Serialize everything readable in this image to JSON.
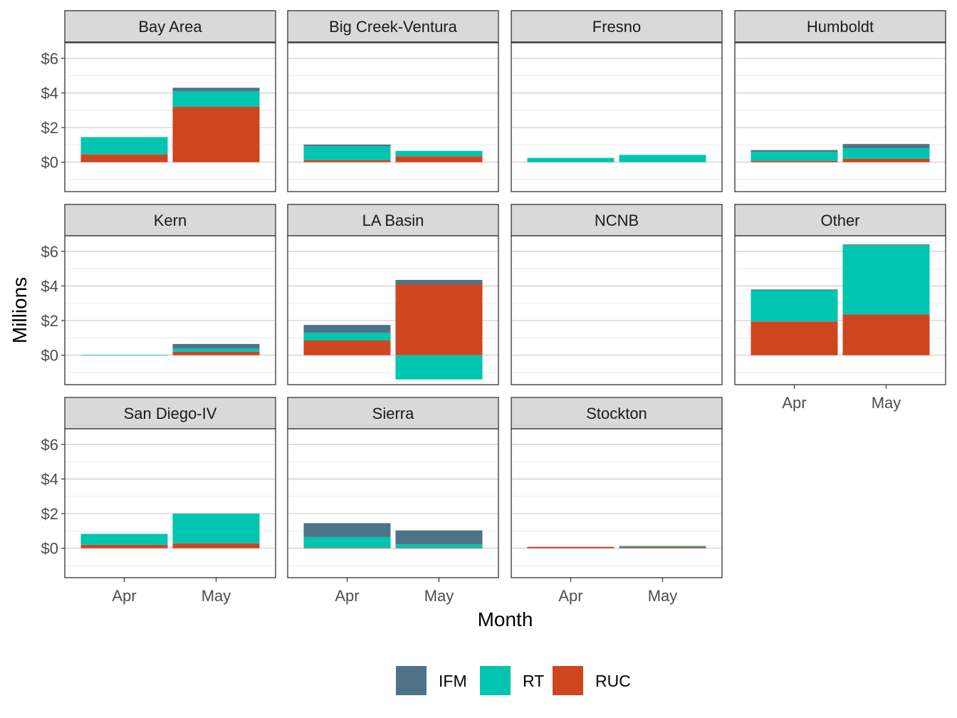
{
  "chart_data": {
    "type": "bar",
    "stacked": true,
    "facet_by": "region",
    "xlabel": "Month",
    "ylabel": "Millions",
    "categories": [
      "Apr",
      "May"
    ],
    "y_ticks": [
      0,
      2,
      4,
      6
    ],
    "y_tick_labels": [
      "$0",
      "$2",
      "$4",
      "$6"
    ],
    "ylim": [
      -1.7,
      6.9
    ],
    "grid": true,
    "legend": {
      "position": "bottom",
      "entries": [
        {
          "name": "IFM",
          "color": "#4e7388"
        },
        {
          "name": "RT",
          "color": "#00c5b0"
        },
        {
          "name": "RUC",
          "color": "#cf4520"
        }
      ]
    },
    "panels": [
      {
        "title": "Bay Area",
        "values": {
          "Apr": {
            "RUC": 0.45,
            "RT": 1.0,
            "IFM": 0.0
          },
          "May": {
            "RUC": 3.2,
            "RT": 0.9,
            "IFM": 0.2
          }
        }
      },
      {
        "title": "Big Creek-Ventura",
        "values": {
          "Apr": {
            "RUC": 0.12,
            "RT": 0.8,
            "IFM": 0.1
          },
          "May": {
            "RUC": 0.35,
            "RT": 0.3,
            "IFM": 0.0
          }
        }
      },
      {
        "title": "Fresno",
        "values": {
          "Apr": {
            "RUC": 0.0,
            "RT": 0.25,
            "IFM": 0.0
          },
          "May": {
            "RUC": 0.0,
            "RT": 0.42,
            "IFM": 0.0
          }
        }
      },
      {
        "title": "Humboldt",
        "values": {
          "Apr": {
            "RUC": 0.08,
            "RT": 0.52,
            "IFM": 0.1
          },
          "May": {
            "RUC": 0.2,
            "RT": 0.6,
            "IFM": 0.25
          }
        }
      },
      {
        "title": "Kern",
        "values": {
          "Apr": {
            "RUC": 0.0,
            "RT": 0.03,
            "IFM": 0.0
          },
          "May": {
            "RUC": 0.2,
            "RT": 0.2,
            "IFM": 0.25
          }
        }
      },
      {
        "title": "LA Basin",
        "values": {
          "Apr": {
            "RUC": 0.85,
            "RT": 0.45,
            "IFM": 0.45
          },
          "May": {
            "RUC": 4.1,
            "RT": -1.4,
            "IFM": 0.25
          }
        }
      },
      {
        "title": "NCNB",
        "values": {
          "Apr": {
            "RUC": 0.0,
            "RT": 0.0,
            "IFM": 0.0
          },
          "May": {
            "RUC": 0.0,
            "RT": 0.0,
            "IFM": 0.0
          }
        }
      },
      {
        "title": "Other",
        "values": {
          "Apr": {
            "RUC": 1.95,
            "RT": 1.8,
            "IFM": 0.05
          },
          "May": {
            "RUC": 2.35,
            "RT": 4.0,
            "IFM": 0.05
          }
        }
      },
      {
        "title": "San Diego-IV",
        "values": {
          "Apr": {
            "RUC": 0.2,
            "RT": 0.63,
            "IFM": 0.0
          },
          "May": {
            "RUC": 0.28,
            "RT": 1.72,
            "IFM": 0.0
          }
        }
      },
      {
        "title": "Sierra",
        "values": {
          "Apr": {
            "RUC": 0.03,
            "RT": 0.62,
            "IFM": 0.8
          },
          "May": {
            "RUC": 0.03,
            "RT": 0.2,
            "IFM": 0.8
          }
        }
      },
      {
        "title": "Stockton",
        "values": {
          "Apr": {
            "RUC": 0.08,
            "RT": 0.0,
            "IFM": 0.0
          },
          "May": {
            "RUC": 0.08,
            "RT": 0.06,
            "IFM": 0.0
          }
        }
      }
    ]
  }
}
